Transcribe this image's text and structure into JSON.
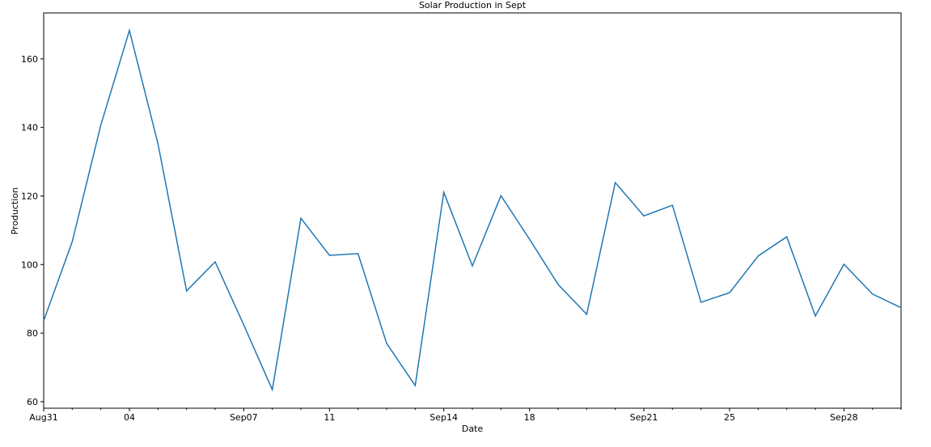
{
  "chart_data": {
    "type": "line",
    "title": "Solar Production in Sept",
    "x_label": "Date",
    "y_label": "Production",
    "categories": [
      "Aug31",
      null,
      null,
      "04",
      null,
      null,
      null,
      "Sep07",
      null,
      null,
      "11",
      null,
      null,
      null,
      "Sep14",
      null,
      null,
      "18",
      null,
      null,
      null,
      "Sep21",
      null,
      null,
      "25",
      null,
      null,
      null,
      "Sep28",
      null,
      null
    ],
    "values": [
      83.6,
      106.7,
      140.7,
      168.3,
      135.2,
      92.3,
      100.8,
      82.4,
      63.5,
      113.5,
      102.7,
      103.2,
      77.0,
      64.7,
      121.1,
      99.6,
      120.1,
      107.4,
      94.2,
      85.5,
      123.9,
      114.2,
      117.3,
      89.0,
      91.8,
      102.5,
      108.1,
      85.0,
      100.1,
      91.4,
      87.4
    ],
    "color": "#1f77b4",
    "ylim": [
      58.1,
      173.4
    ],
    "yticks": [
      60,
      80,
      100,
      120,
      140,
      160
    ],
    "grid": false
  }
}
